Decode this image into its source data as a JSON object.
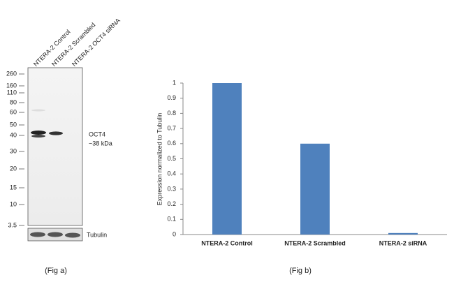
{
  "blot": {
    "lanes": [
      "NTERA-2 Control",
      "NTERA-2 Scrambled",
      "NTERA-2 OCT4 siRNA"
    ],
    "markers": [
      260,
      160,
      110,
      80,
      60,
      50,
      40,
      30,
      20,
      15,
      10,
      3.5
    ],
    "band_name": "OCT4",
    "band_size": "~38 kDa",
    "loading_control": "Tubulin",
    "caption": "(Fig a)"
  },
  "chart_data": {
    "type": "bar",
    "caption": "(Fig b)",
    "y_label": "Expression  normalized to Tubulin",
    "categories": [
      "NTERA-2 Control",
      "NTERA-2 Scrambled",
      "NTERA-2 siRNA"
    ],
    "values": [
      1,
      0.6,
      0.01
    ],
    "color": "#4f81bd",
    "ylim": [
      0,
      1
    ],
    "yticks": [
      0,
      0.1,
      0.2,
      0.3,
      0.4,
      0.5,
      0.6,
      0.7,
      0.8,
      0.9,
      1
    ],
    "grid": false
  }
}
